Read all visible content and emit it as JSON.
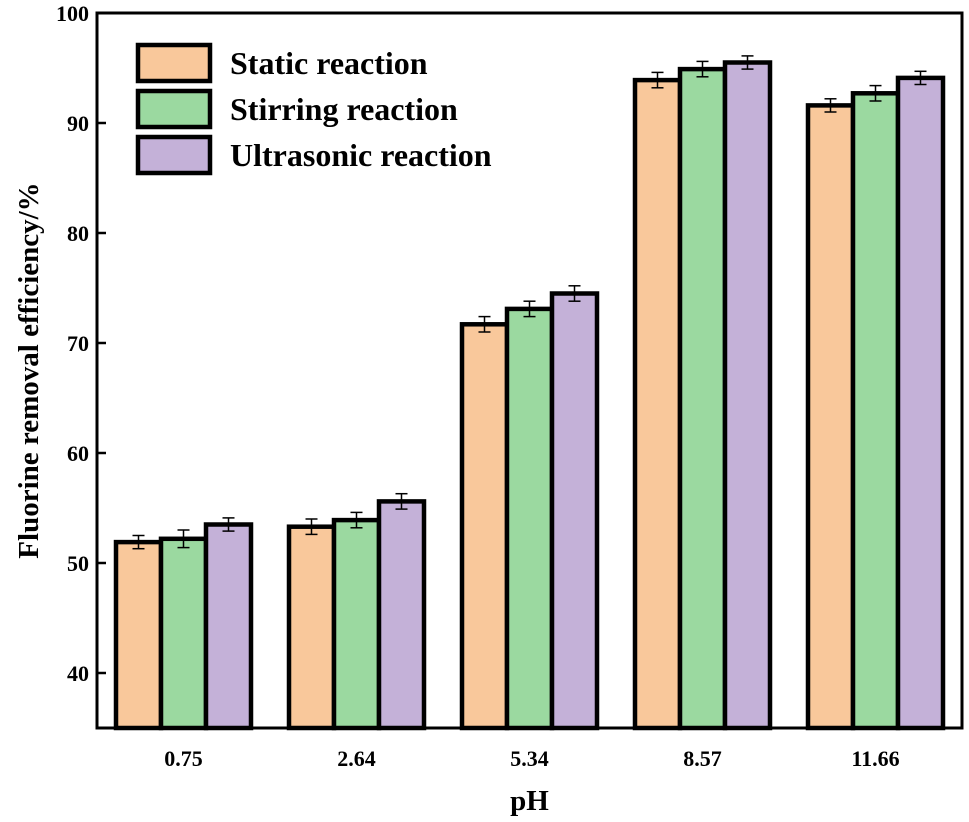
{
  "chart_data": {
    "type": "bar",
    "title": "",
    "xlabel": "pH",
    "ylabel": "Fluorine removal efficiency/%",
    "categories": [
      "0.75",
      "2.64",
      "5.34",
      "8.57",
      "11.66"
    ],
    "ylim": [
      35,
      100
    ],
    "yticks": [
      40,
      50,
      60,
      70,
      80,
      90,
      100
    ],
    "legend_position": "top-left",
    "grid": false,
    "series": [
      {
        "name": "Static reaction",
        "color": "#F9C89B",
        "values": [
          51.9,
          53.3,
          71.7,
          93.9,
          91.6
        ],
        "errors": [
          0.6,
          0.7,
          0.7,
          0.7,
          0.6
        ]
      },
      {
        "name": "Stirring reaction",
        "color": "#9BD9A0",
        "values": [
          52.2,
          53.9,
          73.1,
          94.9,
          92.7
        ],
        "errors": [
          0.8,
          0.7,
          0.7,
          0.7,
          0.7
        ]
      },
      {
        "name": "Ultrasonic reaction",
        "color": "#C4B1D8",
        "values": [
          53.5,
          55.6,
          74.5,
          95.5,
          94.1
        ],
        "errors": [
          0.6,
          0.7,
          0.7,
          0.6,
          0.6
        ]
      }
    ]
  }
}
